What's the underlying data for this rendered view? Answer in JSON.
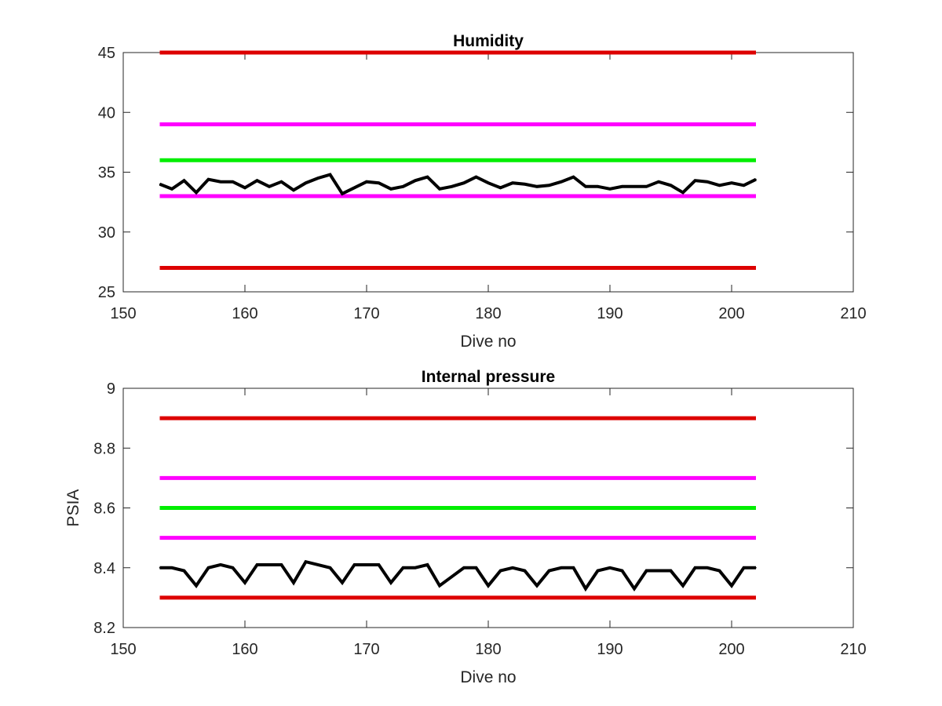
{
  "colors": {
    "red": "#dd0000",
    "magenta": "#ff00ff",
    "green": "#00ee00",
    "black": "#000000",
    "axis": "#262626"
  },
  "chart_data": [
    {
      "type": "line",
      "title": "Humidity",
      "xlabel": "Dive no",
      "ylabel": "",
      "xlim": [
        150,
        210
      ],
      "ylim": [
        25,
        45
      ],
      "xticks": [
        "150",
        "160",
        "170",
        "180",
        "190",
        "200",
        "210"
      ],
      "yticks": [
        "25",
        "30",
        "35",
        "40",
        "45"
      ],
      "grid": false,
      "limits": [
        {
          "value": 45,
          "color": "#dd0000"
        },
        {
          "value": 39,
          "color": "#ff00ff"
        },
        {
          "value": 36,
          "color": "#00ee00"
        },
        {
          "value": 33,
          "color": "#ff00ff"
        },
        {
          "value": 27,
          "color": "#dd0000"
        }
      ],
      "limit_x_range": [
        153,
        202
      ],
      "series": [
        {
          "color": "#000000",
          "x": [
            153,
            154,
            155,
            156,
            157,
            158,
            159,
            160,
            161,
            162,
            163,
            164,
            165,
            166,
            167,
            168,
            169,
            170,
            171,
            172,
            173,
            174,
            175,
            176,
            177,
            178,
            179,
            180,
            181,
            182,
            183,
            184,
            185,
            186,
            187,
            188,
            189,
            190,
            191,
            192,
            193,
            194,
            195,
            196,
            197,
            198,
            199,
            200,
            201,
            202
          ],
          "y": [
            34.0,
            33.6,
            34.3,
            33.3,
            34.4,
            34.2,
            34.2,
            33.7,
            34.3,
            33.8,
            34.2,
            33.5,
            34.1,
            34.5,
            34.8,
            33.2,
            33.7,
            34.2,
            34.1,
            33.6,
            33.8,
            34.3,
            34.6,
            33.6,
            33.8,
            34.1,
            34.6,
            34.1,
            33.7,
            34.1,
            34.0,
            33.8,
            33.9,
            34.2,
            34.6,
            33.8,
            33.8,
            33.6,
            33.8,
            33.8,
            33.8,
            34.2,
            33.9,
            33.3,
            34.3,
            34.2,
            33.9,
            34.1,
            33.9,
            34.4
          ]
        }
      ]
    },
    {
      "type": "line",
      "title": "Internal pressure",
      "xlabel": "Dive no",
      "ylabel": "PSIA",
      "xlim": [
        150,
        210
      ],
      "ylim": [
        8.2,
        9.0
      ],
      "xticks": [
        "150",
        "160",
        "170",
        "180",
        "190",
        "200",
        "210"
      ],
      "yticks": [
        "8.2",
        "8.4",
        "8.6",
        "8.8",
        "9"
      ],
      "grid": false,
      "limits": [
        {
          "value": 8.9,
          "color": "#dd0000"
        },
        {
          "value": 8.7,
          "color": "#ff00ff"
        },
        {
          "value": 8.6,
          "color": "#00ee00"
        },
        {
          "value": 8.5,
          "color": "#ff00ff"
        },
        {
          "value": 8.3,
          "color": "#dd0000"
        }
      ],
      "limit_x_range": [
        153,
        202
      ],
      "series": [
        {
          "color": "#000000",
          "x": [
            153,
            154,
            155,
            156,
            157,
            158,
            159,
            160,
            161,
            162,
            163,
            164,
            165,
            166,
            167,
            168,
            169,
            170,
            171,
            172,
            173,
            174,
            175,
            176,
            177,
            178,
            179,
            180,
            181,
            182,
            183,
            184,
            185,
            186,
            187,
            188,
            189,
            190,
            191,
            192,
            193,
            194,
            195,
            196,
            197,
            198,
            199,
            200,
            201,
            202
          ],
          "y": [
            8.4,
            8.4,
            8.39,
            8.34,
            8.4,
            8.41,
            8.4,
            8.35,
            8.41,
            8.41,
            8.41,
            8.35,
            8.42,
            8.41,
            8.4,
            8.35,
            8.41,
            8.41,
            8.41,
            8.35,
            8.4,
            8.4,
            8.41,
            8.34,
            8.37,
            8.4,
            8.4,
            8.34,
            8.39,
            8.4,
            8.39,
            8.34,
            8.39,
            8.4,
            8.4,
            8.33,
            8.39,
            8.4,
            8.39,
            8.33,
            8.39,
            8.39,
            8.39,
            8.34,
            8.4,
            8.4,
            8.39,
            8.34,
            8.4,
            8.4
          ]
        }
      ]
    }
  ]
}
